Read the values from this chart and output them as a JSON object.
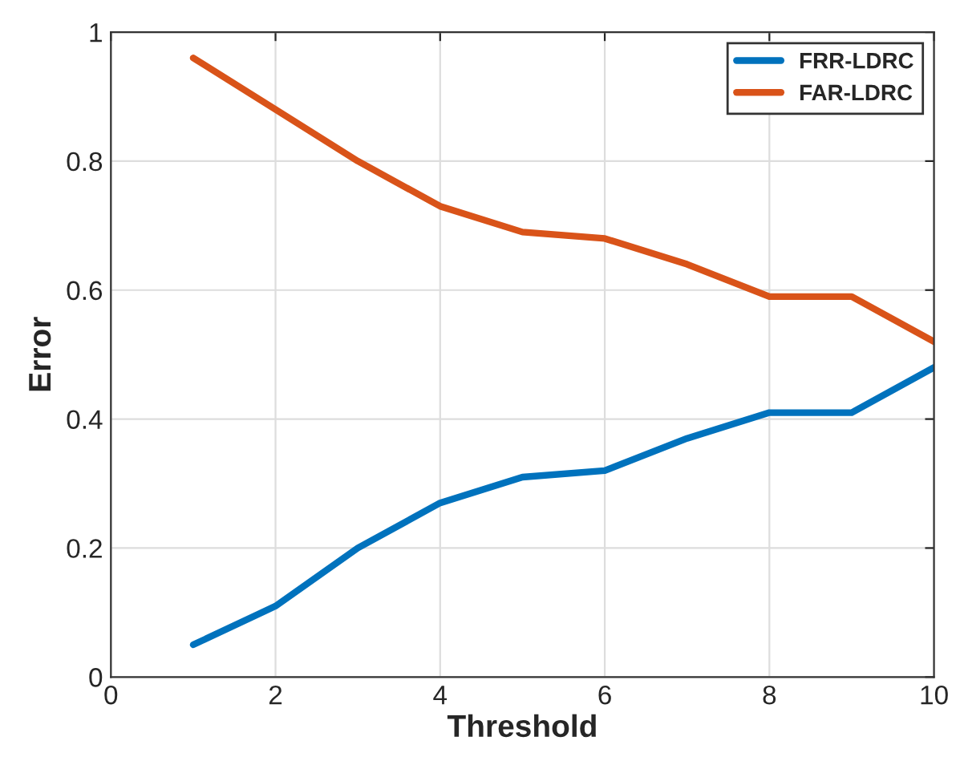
{
  "chart_data": {
    "type": "line",
    "xlabel": "Threshold",
    "ylabel": "Error",
    "x": [
      1,
      2,
      3,
      4,
      5,
      6,
      7,
      8,
      9,
      10
    ],
    "series": [
      {
        "name": "FRR-LDRC",
        "color": "#0072bd",
        "values": [
          0.05,
          0.11,
          0.2,
          0.27,
          0.31,
          0.32,
          0.37,
          0.41,
          0.41,
          0.48
        ]
      },
      {
        "name": "FAR-LDRC",
        "color": "#d95319",
        "values": [
          0.96,
          0.88,
          0.8,
          0.73,
          0.69,
          0.68,
          0.64,
          0.59,
          0.59,
          0.52
        ]
      }
    ],
    "xlim": [
      0,
      10
    ],
    "xticks": [
      0,
      2,
      4,
      6,
      8,
      10
    ],
    "ylim": [
      0,
      1
    ],
    "yticks": [
      0,
      0.2,
      0.4,
      0.6,
      0.8,
      1
    ],
    "grid": true,
    "legend": "top right",
    "marker": "none",
    "line_style": "solid"
  }
}
